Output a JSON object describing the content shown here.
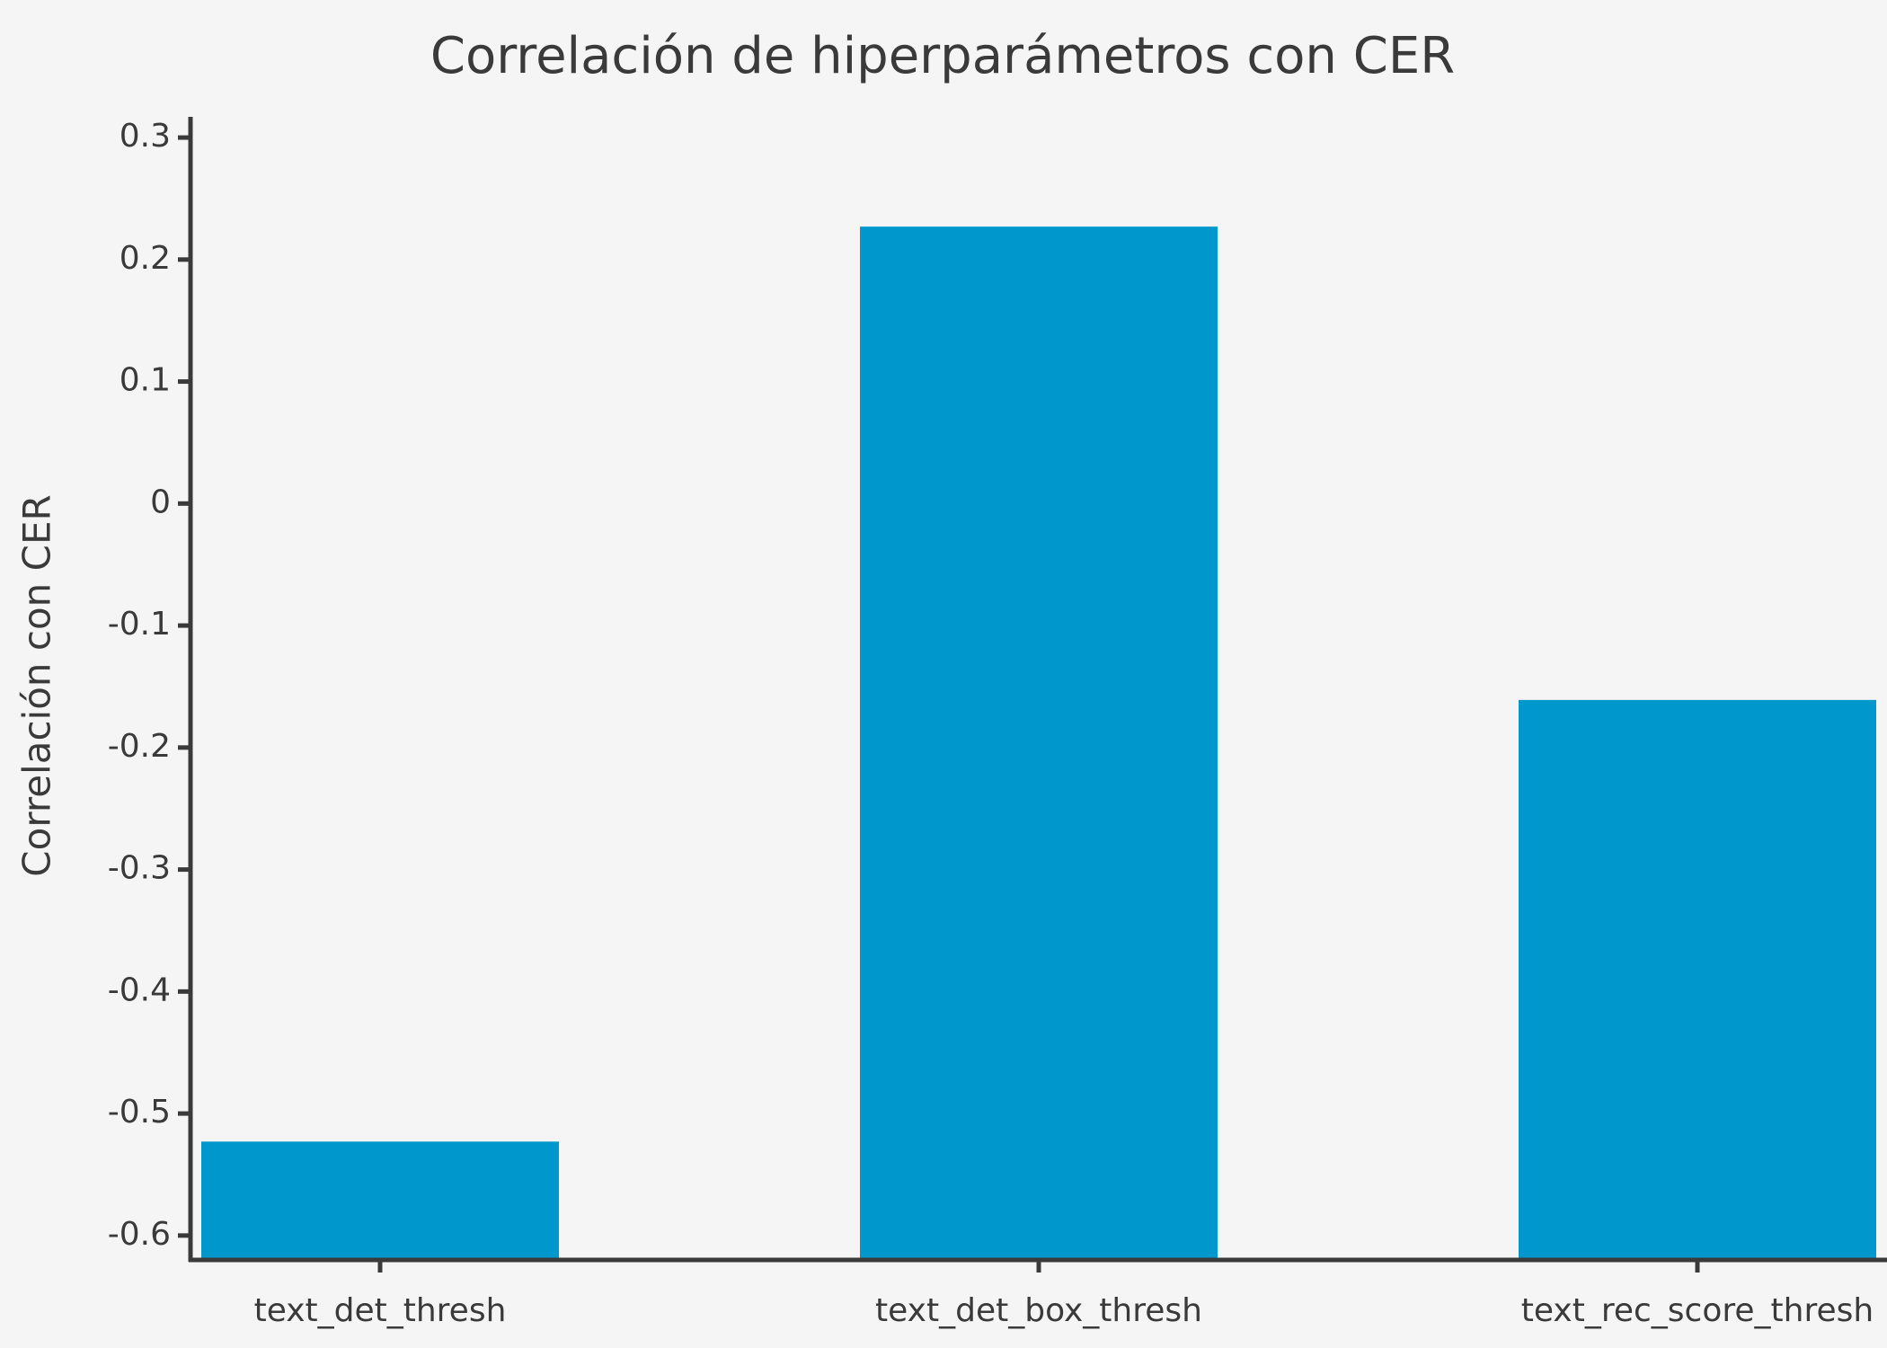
{
  "chart_data": {
    "type": "bar",
    "title": "Correlación de hiperparámetros con CER",
    "y_label": "Correlación con CER",
    "categories": [
      "text_det_thresh",
      "text_det_box_thresh",
      "text_rec_score_thresh"
    ],
    "values": [
      -0.523,
      0.227,
      -0.161
    ],
    "color": "#0097cc",
    "ylim": [
      -0.62,
      0.317
    ],
    "yticks": [
      -0.6,
      -0.5,
      -0.4,
      -0.3,
      -0.2,
      -0.1,
      0,
      0.1,
      0.2,
      0.3
    ]
  }
}
